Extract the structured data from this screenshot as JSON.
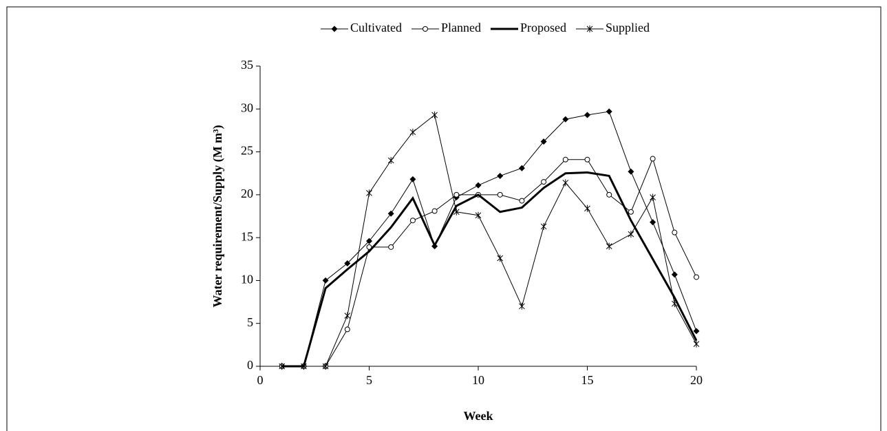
{
  "chart_data": {
    "type": "line",
    "xlabel": "Week",
    "ylabel": "Water requirement/Supply (M m³)",
    "x": [
      1,
      2,
      3,
      4,
      5,
      6,
      7,
      8,
      9,
      10,
      11,
      12,
      13,
      14,
      15,
      16,
      17,
      18,
      19,
      20
    ],
    "series": [
      {
        "name": "Cultivated",
        "color": "#000000",
        "marker": "diamond",
        "width": 1,
        "values": [
          0,
          0,
          10,
          12,
          14.6,
          17.8,
          21.8,
          14,
          19.7,
          21.1,
          22.2,
          23.1,
          26.2,
          28.8,
          29.3,
          29.7,
          22.7,
          16.8,
          10.7,
          4.1
        ]
      },
      {
        "name": "Planned",
        "color": "#000000",
        "marker": "circle",
        "width": 1,
        "values": [
          0,
          0,
          0,
          4.3,
          13.9,
          13.9,
          17,
          18.1,
          20,
          20,
          20,
          19.3,
          21.5,
          24.1,
          24.1,
          20,
          18,
          24.2,
          15.6,
          10.4
        ]
      },
      {
        "name": "Proposed",
        "color": "#000000",
        "marker": "none",
        "width": 3,
        "values": [
          0,
          0,
          9.1,
          11.3,
          13.4,
          16.2,
          19.6,
          14.1,
          18.7,
          20,
          18,
          18.5,
          20.8,
          22.5,
          22.6,
          22.2,
          17,
          12.5,
          8,
          3
        ]
      },
      {
        "name": "Supplied",
        "color": "#000000",
        "marker": "asterisk",
        "width": 1,
        "values": [
          0,
          0,
          0,
          5.9,
          20.2,
          24,
          27.3,
          29.3,
          18,
          17.6,
          12.6,
          7,
          16.3,
          21.4,
          18.4,
          14,
          15.4,
          19.7,
          7.3,
          2.6
        ]
      }
    ],
    "xlim": [
      0,
      20
    ],
    "xticks": [
      0,
      5,
      10,
      15,
      20
    ],
    "ylim": [
      0,
      35
    ],
    "yticks": [
      0,
      5,
      10,
      15,
      20,
      25,
      30,
      35
    ],
    "legend": "top"
  }
}
